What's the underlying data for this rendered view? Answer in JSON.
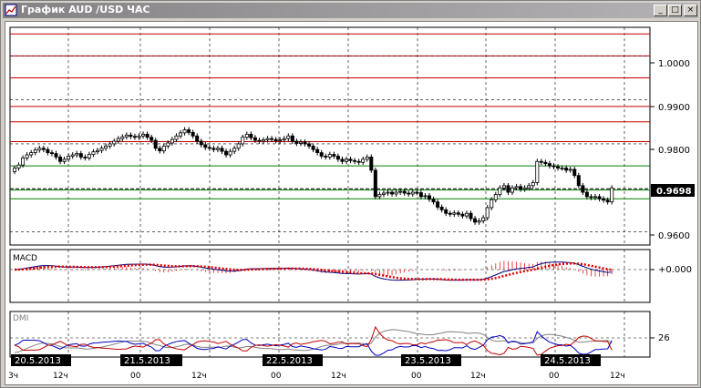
{
  "window": {
    "title": "График AUD /USD  ЧАС",
    "buttons": {
      "minimize": "_",
      "maximize": "□",
      "close": "×"
    }
  },
  "price_axis": {
    "labels": [
      "1.0000",
      "0.9900",
      "0.9800",
      "0.9600"
    ],
    "current_price": "0.9698"
  },
  "macd": {
    "label": "MACD",
    "zero_label": "+0.000"
  },
  "dmi": {
    "label": "DMI",
    "level_label": "26"
  },
  "date_labels": [
    "20.5.2013",
    "21.5.2013",
    "22.5.2013",
    "23.5.2013",
    "24.5.2013"
  ],
  "time_labels": [
    "3ч",
    "12ч",
    "00",
    "12ч",
    "00",
    "12ч",
    "00",
    "12ч",
    "00",
    "12ч",
    "00",
    "12ч"
  ],
  "colors": {
    "resistance": "#c00000",
    "support": "#008000",
    "macd_line": "#000080",
    "signal_line": "#e00000",
    "dmi_plus": "#0000c0",
    "dmi_minus": "#c00000",
    "adx": "#808080"
  },
  "chart_data": {
    "type": "candlestick",
    "instrument": "AUD /USD",
    "timeframe": "ЧАС",
    "ylim": [
      0.957,
      1.0065
    ],
    "horizontal_levels": {
      "resistance": [
        1.005,
        1.0,
        0.995,
        0.9885,
        0.985,
        0.9805
      ],
      "support": [
        0.975,
        0.9695,
        0.9675
      ]
    },
    "current_price": 0.9698,
    "closes": [
      0.9745,
      0.9752,
      0.9768,
      0.9775,
      0.978,
      0.9786,
      0.979,
      0.9787,
      0.978,
      0.9778,
      0.977,
      0.976,
      0.9765,
      0.9772,
      0.9775,
      0.9778,
      0.977,
      0.9768,
      0.9776,
      0.9782,
      0.9785,
      0.979,
      0.9795,
      0.98,
      0.9806,
      0.9812,
      0.9816,
      0.982,
      0.9817,
      0.9815,
      0.9818,
      0.9822,
      0.9815,
      0.9808,
      0.979,
      0.9784,
      0.9795,
      0.9802,
      0.981,
      0.9818,
      0.9825,
      0.9832,
      0.9826,
      0.9818,
      0.9806,
      0.9798,
      0.9792,
      0.979,
      0.9787,
      0.979,
      0.9783,
      0.9775,
      0.9783,
      0.979,
      0.98,
      0.9815,
      0.9822,
      0.9814,
      0.9808,
      0.9806,
      0.9809,
      0.9812,
      0.981,
      0.9807,
      0.9809,
      0.9812,
      0.9818,
      0.9806,
      0.9801,
      0.9804,
      0.98,
      0.9795,
      0.9787,
      0.978,
      0.9772,
      0.977,
      0.9776,
      0.9772,
      0.9765,
      0.976,
      0.9765,
      0.9762,
      0.976,
      0.9758,
      0.9765,
      0.977,
      0.974,
      0.968,
      0.9685,
      0.9688,
      0.969,
      0.9686,
      0.969,
      0.9692,
      0.9688,
      0.9686,
      0.969,
      0.9689,
      0.968,
      0.9682,
      0.9674,
      0.9668,
      0.9656,
      0.965,
      0.9642,
      0.964,
      0.9643,
      0.964,
      0.9636,
      0.9642,
      0.963,
      0.9622,
      0.9625,
      0.9632,
      0.9655,
      0.9673,
      0.9685,
      0.97,
      0.9705,
      0.969,
      0.97,
      0.9703,
      0.9697,
      0.97,
      0.9705,
      0.9712,
      0.976,
      0.9758,
      0.9755,
      0.975,
      0.9748,
      0.9745,
      0.9745,
      0.974,
      0.9742,
      0.9728,
      0.9705,
      0.969,
      0.968,
      0.9678,
      0.968,
      0.9675,
      0.9672,
      0.9668,
      0.97
    ],
    "indicators": [
      {
        "name": "MACD",
        "zero_label": "+0.000"
      },
      {
        "name": "DMI",
        "level": 26
      }
    ]
  }
}
